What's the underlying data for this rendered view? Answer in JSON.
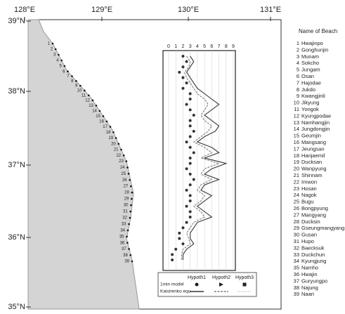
{
  "map": {
    "lon_labels": [
      "128°E",
      "129°E",
      "130°E",
      "131°E"
    ],
    "lat_labels": [
      "39°N",
      "38°N",
      "37°N",
      "36°N",
      "35°N"
    ]
  },
  "beach_list_title": "Name of Beach",
  "beaches": [
    {
      "number": "1",
      "name": "Hwajinpo"
    },
    {
      "number": "2",
      "name": "Gonghunjin"
    },
    {
      "number": "3",
      "name": "Munam"
    },
    {
      "number": "4",
      "name": "Sokcho"
    },
    {
      "number": "5",
      "name": "Jungam"
    },
    {
      "number": "6",
      "name": "Osan"
    },
    {
      "number": "7",
      "name": "Hajodae"
    },
    {
      "number": "8",
      "name": "Jukdo"
    },
    {
      "number": "9",
      "name": "Kwangjinli"
    },
    {
      "number": "10",
      "name": "Jikyung"
    },
    {
      "number": "11",
      "name": "Yongok"
    },
    {
      "number": "12",
      "name": "Kyungpodae"
    },
    {
      "number": "13",
      "name": "Namhangjin"
    },
    {
      "number": "14",
      "name": "Jungdongjin"
    },
    {
      "number": "15",
      "name": "Geumjin"
    },
    {
      "number": "16",
      "name": "Mangsang"
    },
    {
      "number": "17",
      "name": "Jeungsan"
    },
    {
      "number": "18",
      "name": "Hanjaemil"
    },
    {
      "number": "19",
      "name": "Ducksan"
    },
    {
      "number": "20",
      "name": "Wanpyung"
    },
    {
      "number": "21",
      "name": "Shinnam"
    },
    {
      "number": "22",
      "name": "Imwon"
    },
    {
      "number": "23",
      "name": "Hosan"
    },
    {
      "number": "24",
      "name": "Nagok"
    },
    {
      "number": "25",
      "name": "Bugu"
    },
    {
      "number": "26",
      "name": "Bongpyung"
    },
    {
      "number": "27",
      "name": "Mangyang"
    },
    {
      "number": "28",
      "name": "Ducksin"
    },
    {
      "number": "29",
      "name": "Gseungmangyang"
    },
    {
      "number": "30",
      "name": "Gusan"
    },
    {
      "number": "31",
      "name": "Hupo"
    },
    {
      "number": "32",
      "name": "Baecksuk"
    },
    {
      "number": "33",
      "name": "Duckchun"
    },
    {
      "number": "34",
      "name": "Kyungjung"
    },
    {
      "number": "35",
      "name": "Namho"
    },
    {
      "number": "36",
      "name": "Hwajin"
    },
    {
      "number": "37",
      "name": "Guryungpo"
    },
    {
      "number": "38",
      "name": "Najung"
    },
    {
      "number": "39",
      "name": "Naari"
    }
  ],
  "inset": {
    "xlim": [
      0,
      9
    ],
    "xticks": [
      0,
      1,
      2,
      3,
      4,
      5,
      6,
      7,
      8,
      9
    ],
    "lines": [
      {
        "color": "#444",
        "values": [
          3,
          3.5,
          3,
          2.5,
          3,
          3.5,
          4,
          5,
          6,
          7,
          6,
          5,
          6,
          7,
          6.5,
          5,
          4,
          6,
          7,
          5,
          8,
          6,
          5,
          7,
          5,
          4.5,
          6,
          5,
          4,
          5,
          6,
          4,
          3.5,
          3,
          3,
          3.5,
          2.5,
          2,
          2
        ]
      },
      {
        "color": "#888",
        "values": [
          2.5,
          3,
          2.8,
          2.2,
          2.5,
          3,
          3.5,
          4,
          5,
          5.5,
          5,
          4.5,
          5,
          6,
          5.5,
          4.5,
          3.5,
          5,
          6,
          4.5,
          7,
          5,
          4.5,
          6,
          4.5,
          4,
          5,
          4.5,
          3.5,
          4.5,
          5,
          3.5,
          3,
          2.5,
          2.8,
          3,
          2,
          1.8,
          1.8
        ]
      }
    ],
    "points": {
      "color": "#333",
      "values": [
        2,
        2.5,
        2,
        1.5,
        2,
        2.5,
        2,
        3,
        3,
        2.5,
        3,
        3.5,
        3,
        3,
        3.5,
        3,
        2.5,
        3,
        3.5,
        3,
        3,
        2.5,
        3,
        3.5,
        3,
        2.5,
        3,
        3,
        2.5,
        3,
        3,
        2.5,
        2,
        1.5,
        1.5,
        2,
        1,
        0.5,
        0.5
      ]
    }
  },
  "legend": {
    "columns": [
      "Hypoth1",
      "Hypoth2",
      "Hypoth3"
    ],
    "rows": [
      "1min model",
      "Kaistrenko equ"
    ]
  }
}
